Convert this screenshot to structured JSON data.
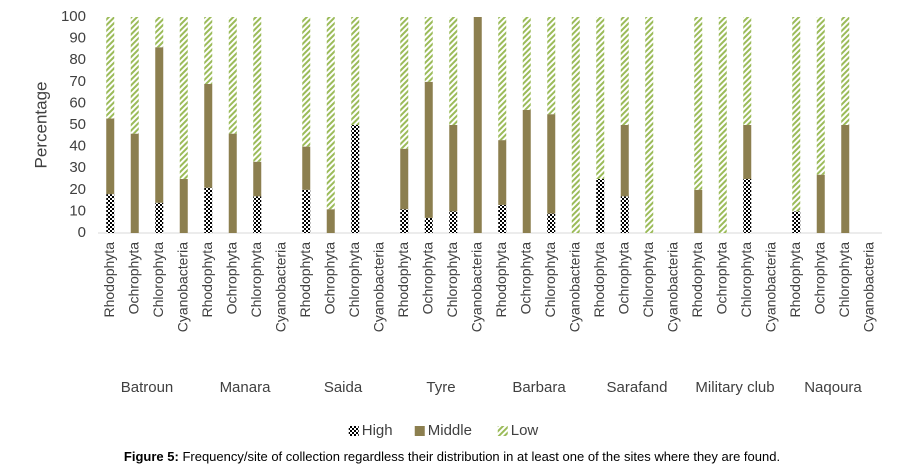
{
  "chart_data": {
    "type": "stacked_bar",
    "y_label": "Percentage",
    "caption_label": "Figure 5:",
    "caption": "Frequency/site of collection regardless their distribution in at least one of the sites where they are found.",
    "groups": [
      "Batroun",
      "Manara",
      "Saida",
      "Tyre",
      "Barbara",
      "Sarafand",
      "Military club",
      "Naqoura"
    ],
    "categories": [
      "Rhodophyta",
      "Ochrophyta",
      "Chlorophyta",
      "Cyanobacteria",
      "Rhodophyta",
      "Ochrophyta",
      "Chlorophyta",
      "Cyanobacteria",
      "Rhodophyta",
      "Ochrophyta",
      "Chlorophyta",
      "Cyanobacteria",
      "Rhodophyta",
      "Ochrophyta",
      "Chlorophyta",
      "Cyanobacteria",
      "Rhodophyta",
      "Ochrophyta",
      "Chlorophyta",
      "Cyanobacteria",
      "Rhodophyta",
      "Ochrophyta",
      "Chlorophyta",
      "Cyanobacteria",
      "Rhodophyta",
      "Ochrophyta",
      "Chlorophyta",
      "Cyanobacteria",
      "Rhodophyta",
      "Ochrophyta",
      "Chlorophyta",
      "Cyanobacteria"
    ],
    "series": [
      {
        "name": "High",
        "color": "#000000",
        "pattern": "checker",
        "values": [
          18,
          0,
          14,
          0,
          21,
          0,
          17,
          0,
          20,
          0,
          50,
          0,
          11,
          7,
          10,
          0,
          13,
          0,
          9,
          0,
          25,
          17,
          0,
          0,
          0,
          0,
          25,
          0,
          10,
          0,
          0,
          0
        ]
      },
      {
        "name": "Middle",
        "color": "#8c7f4f",
        "pattern": "solid",
        "values": [
          35,
          46,
          72,
          25,
          48,
          46,
          16,
          0,
          20,
          11,
          0,
          0,
          28,
          63,
          40,
          100,
          30,
          57,
          46,
          0,
          0,
          33,
          0,
          0,
          20,
          0,
          25,
          0,
          0,
          27,
          50,
          0
        ]
      },
      {
        "name": "Low",
        "color": "#9bbb59",
        "pattern": "hatch",
        "values": [
          47,
          54,
          14,
          75,
          31,
          54,
          67,
          0,
          60,
          89,
          50,
          0,
          61,
          30,
          50,
          0,
          57,
          43,
          45,
          100,
          75,
          50,
          100,
          0,
          80,
          100,
          50,
          0,
          90,
          73,
          50,
          0
        ]
      }
    ],
    "ylim": [
      0,
      100
    ],
    "yticks": [
      0,
      10,
      20,
      30,
      40,
      50,
      60,
      70,
      80,
      90,
      100
    ],
    "legend": "bottom"
  }
}
